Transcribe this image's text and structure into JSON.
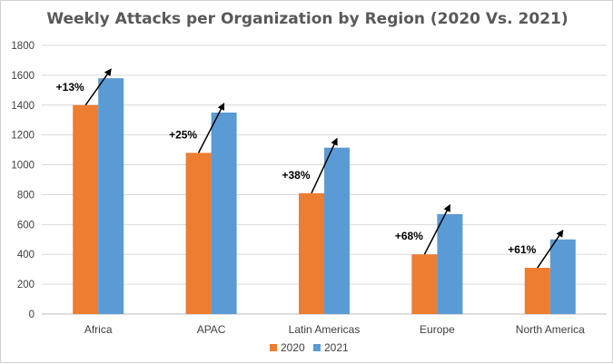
{
  "chart_data": {
    "type": "bar",
    "title": "Weekly Attacks per Organization by Region (2020 Vs. 2021)",
    "xlabel": "",
    "ylabel": "",
    "categories": [
      "Africa",
      "APAC",
      "Latin Americas",
      "Europe",
      "North America"
    ],
    "series": [
      {
        "name": "2020",
        "color": "#ED7D31",
        "values": [
          1400,
          1080,
          810,
          400,
          310
        ]
      },
      {
        "name": "2021",
        "color": "#5B9BD5",
        "values": [
          1580,
          1350,
          1115,
          670,
          500
        ]
      }
    ],
    "annotations": [
      "+13%",
      "+25%",
      "+38%",
      "+68%",
      "+61%"
    ],
    "ylim": [
      0,
      1800
    ],
    "yticks": [
      0,
      200,
      400,
      600,
      800,
      1000,
      1200,
      1400,
      1600,
      1800
    ],
    "grid": true,
    "legend": "bottom"
  }
}
